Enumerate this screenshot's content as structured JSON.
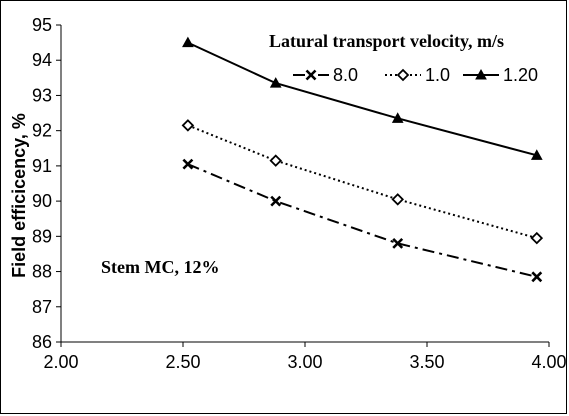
{
  "chart_data": {
    "type": "line",
    "ylabel": "Field efficicency, %",
    "xlabel": "",
    "xlim": [
      2.0,
      4.0
    ],
    "ylim": [
      86,
      95
    ],
    "x_ticks": [
      "2.00",
      "2.50",
      "3.00",
      "3.50",
      "4.00"
    ],
    "y_ticks": [
      "86",
      "87",
      "88",
      "89",
      "90",
      "91",
      "92",
      "93",
      "94",
      "95"
    ],
    "grid": false,
    "legend_title": "Latural transport velocity, m/s",
    "legend_position": "top",
    "annotation": "Stem MC, 12%",
    "series": [
      {
        "name": "8.0",
        "style": "dash-dot",
        "marker": "x",
        "color": "#000000",
        "x": [
          2.52,
          2.88,
          3.38,
          3.95
        ],
        "y": [
          91.05,
          90.0,
          88.8,
          87.85
        ]
      },
      {
        "name": "1.0",
        "style": "dotted",
        "marker": "diamond",
        "color": "#000000",
        "x": [
          2.52,
          2.88,
          3.38,
          3.95
        ],
        "y": [
          92.15,
          91.15,
          90.05,
          88.95
        ]
      },
      {
        "name": "1.20",
        "style": "solid",
        "marker": "triangle",
        "color": "#000000",
        "x": [
          2.52,
          2.88,
          3.38,
          3.95
        ],
        "y": [
          94.5,
          93.35,
          92.35,
          91.3
        ]
      }
    ]
  }
}
